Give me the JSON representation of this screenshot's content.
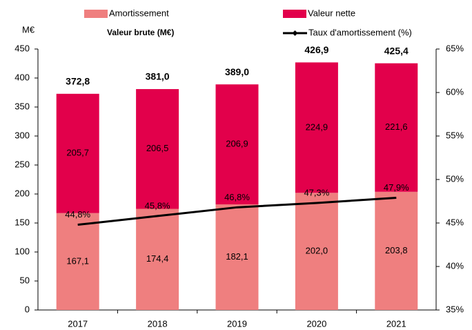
{
  "chart_data": {
    "type": "bar",
    "stacked": true,
    "y_label": "M€",
    "categories": [
      "2017",
      "2018",
      "2019",
      "2020",
      "2021"
    ],
    "series": [
      {
        "name": "Amortissement",
        "color": "#ef7f7f",
        "values": [
          167.1,
          174.4,
          182.1,
          202.0,
          203.8
        ],
        "value_labels": [
          "167,1",
          "174,4",
          "182,1",
          "202,0",
          "203,8"
        ]
      },
      {
        "name": "Valeur nette",
        "color": "#e2004b",
        "values": [
          205.7,
          206.5,
          206.9,
          224.9,
          221.6
        ],
        "value_labels": [
          "205,7",
          "206,5",
          "206,9",
          "224,9",
          "221,6"
        ]
      },
      {
        "name": "Taux d'amortissement (%)",
        "type": "line",
        "axis": "y2",
        "color": "#000000",
        "values": [
          44.8,
          45.8,
          46.8,
          47.3,
          47.9
        ],
        "value_labels": [
          "44,8%",
          "45,8%",
          "46,8%",
          "47,3%",
          "47,9%"
        ]
      }
    ],
    "totals": {
      "name": "Valeur brute (M€)",
      "values": [
        372.8,
        381.0,
        389.0,
        426.9,
        425.4
      ],
      "value_labels": [
        "372,8",
        "381,0",
        "389,0",
        "426,9",
        "425,4"
      ]
    },
    "ylim": [
      0,
      450
    ],
    "yticks": [
      0,
      50,
      100,
      150,
      200,
      250,
      300,
      350,
      400,
      450
    ],
    "y2lim": [
      35,
      65
    ],
    "y2ticks": [
      {
        "value": 35,
        "label": "35%"
      },
      {
        "value": 40,
        "label": "40%"
      },
      {
        "value": 45,
        "label": "45%"
      },
      {
        "value": 50,
        "label": "50%"
      },
      {
        "value": 55,
        "label": "55%"
      },
      {
        "value": 60,
        "label": "60%"
      },
      {
        "value": 65,
        "label": "65%"
      }
    ]
  }
}
